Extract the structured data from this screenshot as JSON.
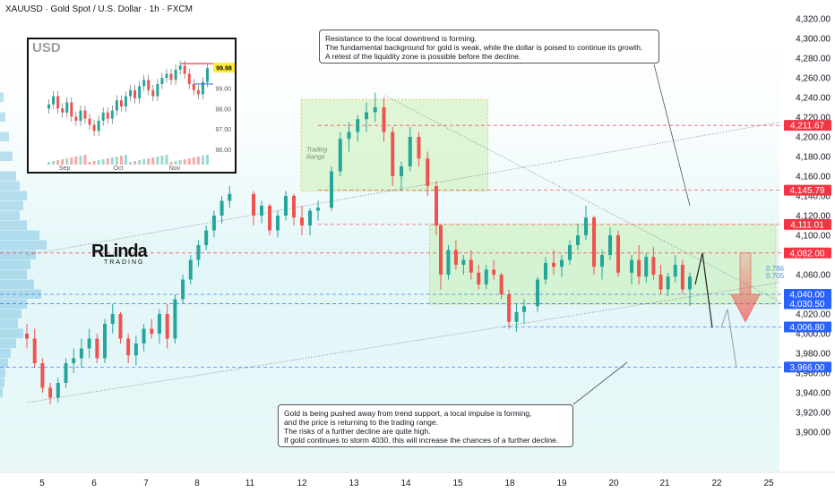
{
  "header": {
    "title": "XAUUSD · Gold Spot / U.S. Dollar · 1h · FXCM"
  },
  "colors": {
    "up": "#26a69a",
    "down": "#ef5350",
    "zone": "#c8f0b4",
    "tag_red": "#f23645",
    "tag_blue": "#2962ff",
    "line_red": "#f23645",
    "line_blue": "#2962ff"
  },
  "annotations": {
    "top_note": [
      "Resistance to the local downtrend is forming.",
      "The fundamental background for gold is weak, while the dollar is poised to continue its growth.",
      "A retest of the liquidity zone is possible before the decline."
    ],
    "bottom_note": [
      "Gold is being pushed away from trend support, a local impulse is forming,",
      "and the price is returning to the trading range.",
      "The risks of a further decline are quite high.",
      "If gold continues to storm 4030, this will increase the chances of a further decline."
    ],
    "trading_range": "Trading\nRange",
    "fib_786": "0.786",
    "fib_705": "0.705"
  },
  "logo": {
    "main": "RLinda",
    "sub": "TRADING"
  },
  "chart_data": {
    "type": "candlestick",
    "symbol": "XAUUSD",
    "timeframe": "1h",
    "ylim": [
      3880,
      4330
    ],
    "y_ticks": [
      3900,
      3920,
      3940,
      3960,
      3980,
      4000,
      4020,
      4040,
      4060,
      4080,
      4100,
      4120,
      4140,
      4160,
      4180,
      4200,
      4220,
      4240,
      4260,
      4280,
      4300,
      4320
    ],
    "y_tick_labels": [
      "3,900.00",
      "3,920.00",
      "3,940.00",
      "3,960.00",
      "3,980.00",
      "4,000.00",
      "4,020.00",
      "4,040.00",
      "4,060.00",
      "4,080.00",
      "4,100.00",
      "4,120.00",
      "4,140.00",
      "4,160.00",
      "4,180.00",
      "4,200.00",
      "4,220.00",
      "4,240.00",
      "4,260.00",
      "4,280.00",
      "4,300.00",
      "4,320.00"
    ],
    "x_ticks": [
      5,
      6,
      7,
      8,
      11,
      12,
      13,
      14,
      15,
      18,
      19,
      20,
      21,
      22,
      25
    ],
    "x_domain": [
      4.6,
      25.6
    ],
    "price_levels": [
      {
        "value": 4211.67,
        "label": "4,211.67",
        "color": "red"
      },
      {
        "value": 4145.79,
        "label": "4,145.79",
        "color": "red"
      },
      {
        "value": 4111.01,
        "label": "4,111.01",
        "color": "red"
      },
      {
        "value": 4082.0,
        "label": "4,082.00",
        "color": "red"
      },
      {
        "value": 4040.0,
        "label": "4,040.00",
        "color": "blue"
      },
      {
        "value": 4030.5,
        "label": "4,030.50",
        "color": "blue"
      },
      {
        "value": 4006.8,
        "label": "4,006.80",
        "color": "blue"
      },
      {
        "value": 3966.0,
        "label": "3,966.00",
        "color": "blue"
      }
    ],
    "zones": [
      {
        "x": [
          11.8,
          14.8
        ],
        "y": [
          4145,
          4238
        ],
        "label": "Trading Range"
      },
      {
        "x": [
          14.8,
          22.2
        ],
        "y": [
          4030,
          4111
        ]
      }
    ],
    "trendlines": [
      {
        "x": [
          4.5,
          25.6
        ],
        "y": [
          3930,
          4052
        ]
      },
      {
        "x": [
          4.5,
          25.6
        ],
        "y": [
          4080,
          4215
        ]
      },
      {
        "x": [
          13.8,
          25.6
        ],
        "y": [
          4242,
          4028
        ]
      }
    ],
    "candles": [
      [
        4.6,
        4000,
        4010,
        3985,
        3995
      ],
      [
        4.8,
        3995,
        4005,
        3965,
        3970
      ],
      [
        5.0,
        3970,
        3975,
        3940,
        3945
      ],
      [
        5.2,
        3945,
        3950,
        3928,
        3935
      ],
      [
        5.4,
        3935,
        3955,
        3930,
        3950
      ],
      [
        5.6,
        3950,
        3975,
        3945,
        3970
      ],
      [
        5.8,
        3970,
        3985,
        3960,
        3975
      ],
      [
        6.0,
        3975,
        3995,
        3965,
        3985
      ],
      [
        6.2,
        3985,
        4005,
        3975,
        3995
      ],
      [
        6.4,
        3995,
        4000,
        3970,
        3975
      ],
      [
        6.6,
        3975,
        4015,
        3970,
        4010
      ],
      [
        6.8,
        4010,
        4030,
        4000,
        4020
      ],
      [
        7.0,
        4020,
        4022,
        3990,
        3995
      ],
      [
        7.2,
        3995,
        4000,
        3970,
        3978
      ],
      [
        7.4,
        3978,
        3998,
        3968,
        3990
      ],
      [
        7.6,
        3990,
        4010,
        3982,
        4005
      ],
      [
        7.8,
        4005,
        4015,
        3995,
        4000
      ],
      [
        8.0,
        4000,
        4025,
        3990,
        4020
      ],
      [
        8.2,
        4020,
        4030,
        3985,
        3995
      ],
      [
        8.4,
        3995,
        4040,
        3990,
        4035
      ],
      [
        8.6,
        4035,
        4060,
        4030,
        4055
      ],
      [
        8.8,
        4055,
        4080,
        4050,
        4075
      ],
      [
        9.0,
        4075,
        4095,
        4068,
        4090
      ],
      [
        9.2,
        4090,
        4110,
        4085,
        4105
      ],
      [
        9.4,
        4105,
        4125,
        4098,
        4120
      ],
      [
        9.6,
        4120,
        4140,
        4112,
        4135
      ],
      [
        9.8,
        4135,
        4150,
        4128,
        4142
      ],
      [
        10.4,
        4142,
        4145,
        4110,
        4120
      ],
      [
        10.6,
        4120,
        4135,
        4112,
        4130
      ],
      [
        10.8,
        4130,
        4132,
        4100,
        4105
      ],
      [
        11.0,
        4105,
        4125,
        4098,
        4120
      ],
      [
        11.2,
        4120,
        4145,
        4115,
        4140
      ],
      [
        11.4,
        4140,
        4142,
        4110,
        4118
      ],
      [
        11.6,
        4118,
        4130,
        4100,
        4110
      ],
      [
        11.8,
        4110,
        4128,
        4100,
        4125
      ],
      [
        12.0,
        4125,
        4135,
        4115,
        4128
      ],
      [
        12.3,
        4128,
        4170,
        4125,
        4165
      ],
      [
        12.5,
        4165,
        4205,
        4160,
        4198
      ],
      [
        12.7,
        4198,
        4215,
        4185,
        4205
      ],
      [
        12.9,
        4205,
        4222,
        4195,
        4218
      ],
      [
        13.1,
        4218,
        4235,
        4205,
        4225
      ],
      [
        13.3,
        4225,
        4245,
        4215,
        4230
      ],
      [
        13.5,
        4230,
        4240,
        4195,
        4205
      ],
      [
        13.7,
        4205,
        4210,
        4150,
        4160
      ],
      [
        13.9,
        4160,
        4175,
        4145,
        4170
      ],
      [
        14.1,
        4170,
        4210,
        4165,
        4200
      ],
      [
        14.3,
        4200,
        4205,
        4170,
        4178
      ],
      [
        14.5,
        4178,
        4185,
        4140,
        4150
      ],
      [
        14.7,
        4150,
        4155,
        4100,
        4110
      ],
      [
        14.9,
        4110,
        4112,
        4045,
        4060
      ],
      [
        15.1,
        4060,
        4090,
        4055,
        4085
      ],
      [
        15.3,
        4085,
        4095,
        4065,
        4070
      ],
      [
        15.5,
        4070,
        4080,
        4060,
        4075
      ],
      [
        15.7,
        4075,
        4085,
        4055,
        4062
      ],
      [
        15.9,
        4062,
        4070,
        4045,
        4050
      ],
      [
        16.1,
        4050,
        4070,
        4045,
        4065
      ],
      [
        16.3,
        4065,
        4075,
        4055,
        4060
      ],
      [
        16.5,
        4060,
        4062,
        4035,
        4040
      ],
      [
        16.7,
        4040,
        4045,
        4005,
        4012
      ],
      [
        16.9,
        4012,
        4030,
        4002,
        4022
      ],
      [
        17.1,
        4022,
        4035,
        4010,
        4028
      ],
      [
        17.4,
        4028,
        4058,
        4022,
        4055
      ],
      [
        17.6,
        4055,
        4078,
        4050,
        4072
      ],
      [
        17.8,
        4072,
        4085,
        4060,
        4068
      ],
      [
        18.0,
        4068,
        4080,
        4058,
        4075
      ],
      [
        18.2,
        4075,
        4095,
        4070,
        4090
      ],
      [
        18.4,
        4090,
        4112,
        4085,
        4100
      ],
      [
        18.6,
        4100,
        4130,
        4095,
        4118
      ],
      [
        18.8,
        4118,
        4120,
        4060,
        4068
      ],
      [
        19.0,
        4068,
        4085,
        4055,
        4080
      ],
      [
        19.2,
        4080,
        4108,
        4075,
        4100
      ],
      [
        19.4,
        4100,
        4105,
        4058,
        4062
      ],
      [
        19.7,
        4062,
        4080,
        4050,
        4075
      ],
      [
        19.9,
        4075,
        4090,
        4050,
        4058
      ],
      [
        20.1,
        4058,
        4082,
        4052,
        4078
      ],
      [
        20.3,
        4078,
        4088,
        4055,
        4060
      ],
      [
        20.5,
        4060,
        4070,
        4040,
        4045
      ],
      [
        20.7,
        4045,
        4062,
        4038,
        4058
      ],
      [
        20.9,
        4058,
        4080,
        4052,
        4070
      ],
      [
        21.1,
        4070,
        4075,
        4040,
        4045
      ],
      [
        21.3,
        4045,
        4062,
        4028,
        4058
      ]
    ],
    "projection_path": {
      "x": [
        21.3,
        21.6,
        21.9
      ],
      "y": [
        4050,
        4082,
        4006
      ]
    },
    "projection_path2": {
      "x": [
        21.9,
        22.2,
        22.5
      ],
      "y": [
        4006,
        4025,
        3966
      ]
    },
    "inset": {
      "title": "USD",
      "y_ticks": [
        96,
        97,
        98,
        99
      ],
      "y_tick_labels": [
        "96.00",
        "97.00",
        "98.00",
        "99.00"
      ],
      "ylim": [
        95.6,
        100.6
      ],
      "x_labels": [
        "Sep",
        "Oct",
        "Nov"
      ],
      "last_label": "99.98",
      "values": [
        98.2,
        98.6,
        98.0,
        97.8,
        98.3,
        97.6,
        97.4,
        97.9,
        97.5,
        97.2,
        96.9,
        97.4,
        97.8,
        97.5,
        97.9,
        98.4,
        98.1,
        98.6,
        98.9,
        98.5,
        99.1,
        99.4,
        98.9,
        98.6,
        99.2,
        99.5,
        99.7,
        99.4,
        99.9,
        100.1,
        99.7,
        99.2,
        98.9,
        98.7,
        99.3,
        99.98
      ]
    }
  }
}
